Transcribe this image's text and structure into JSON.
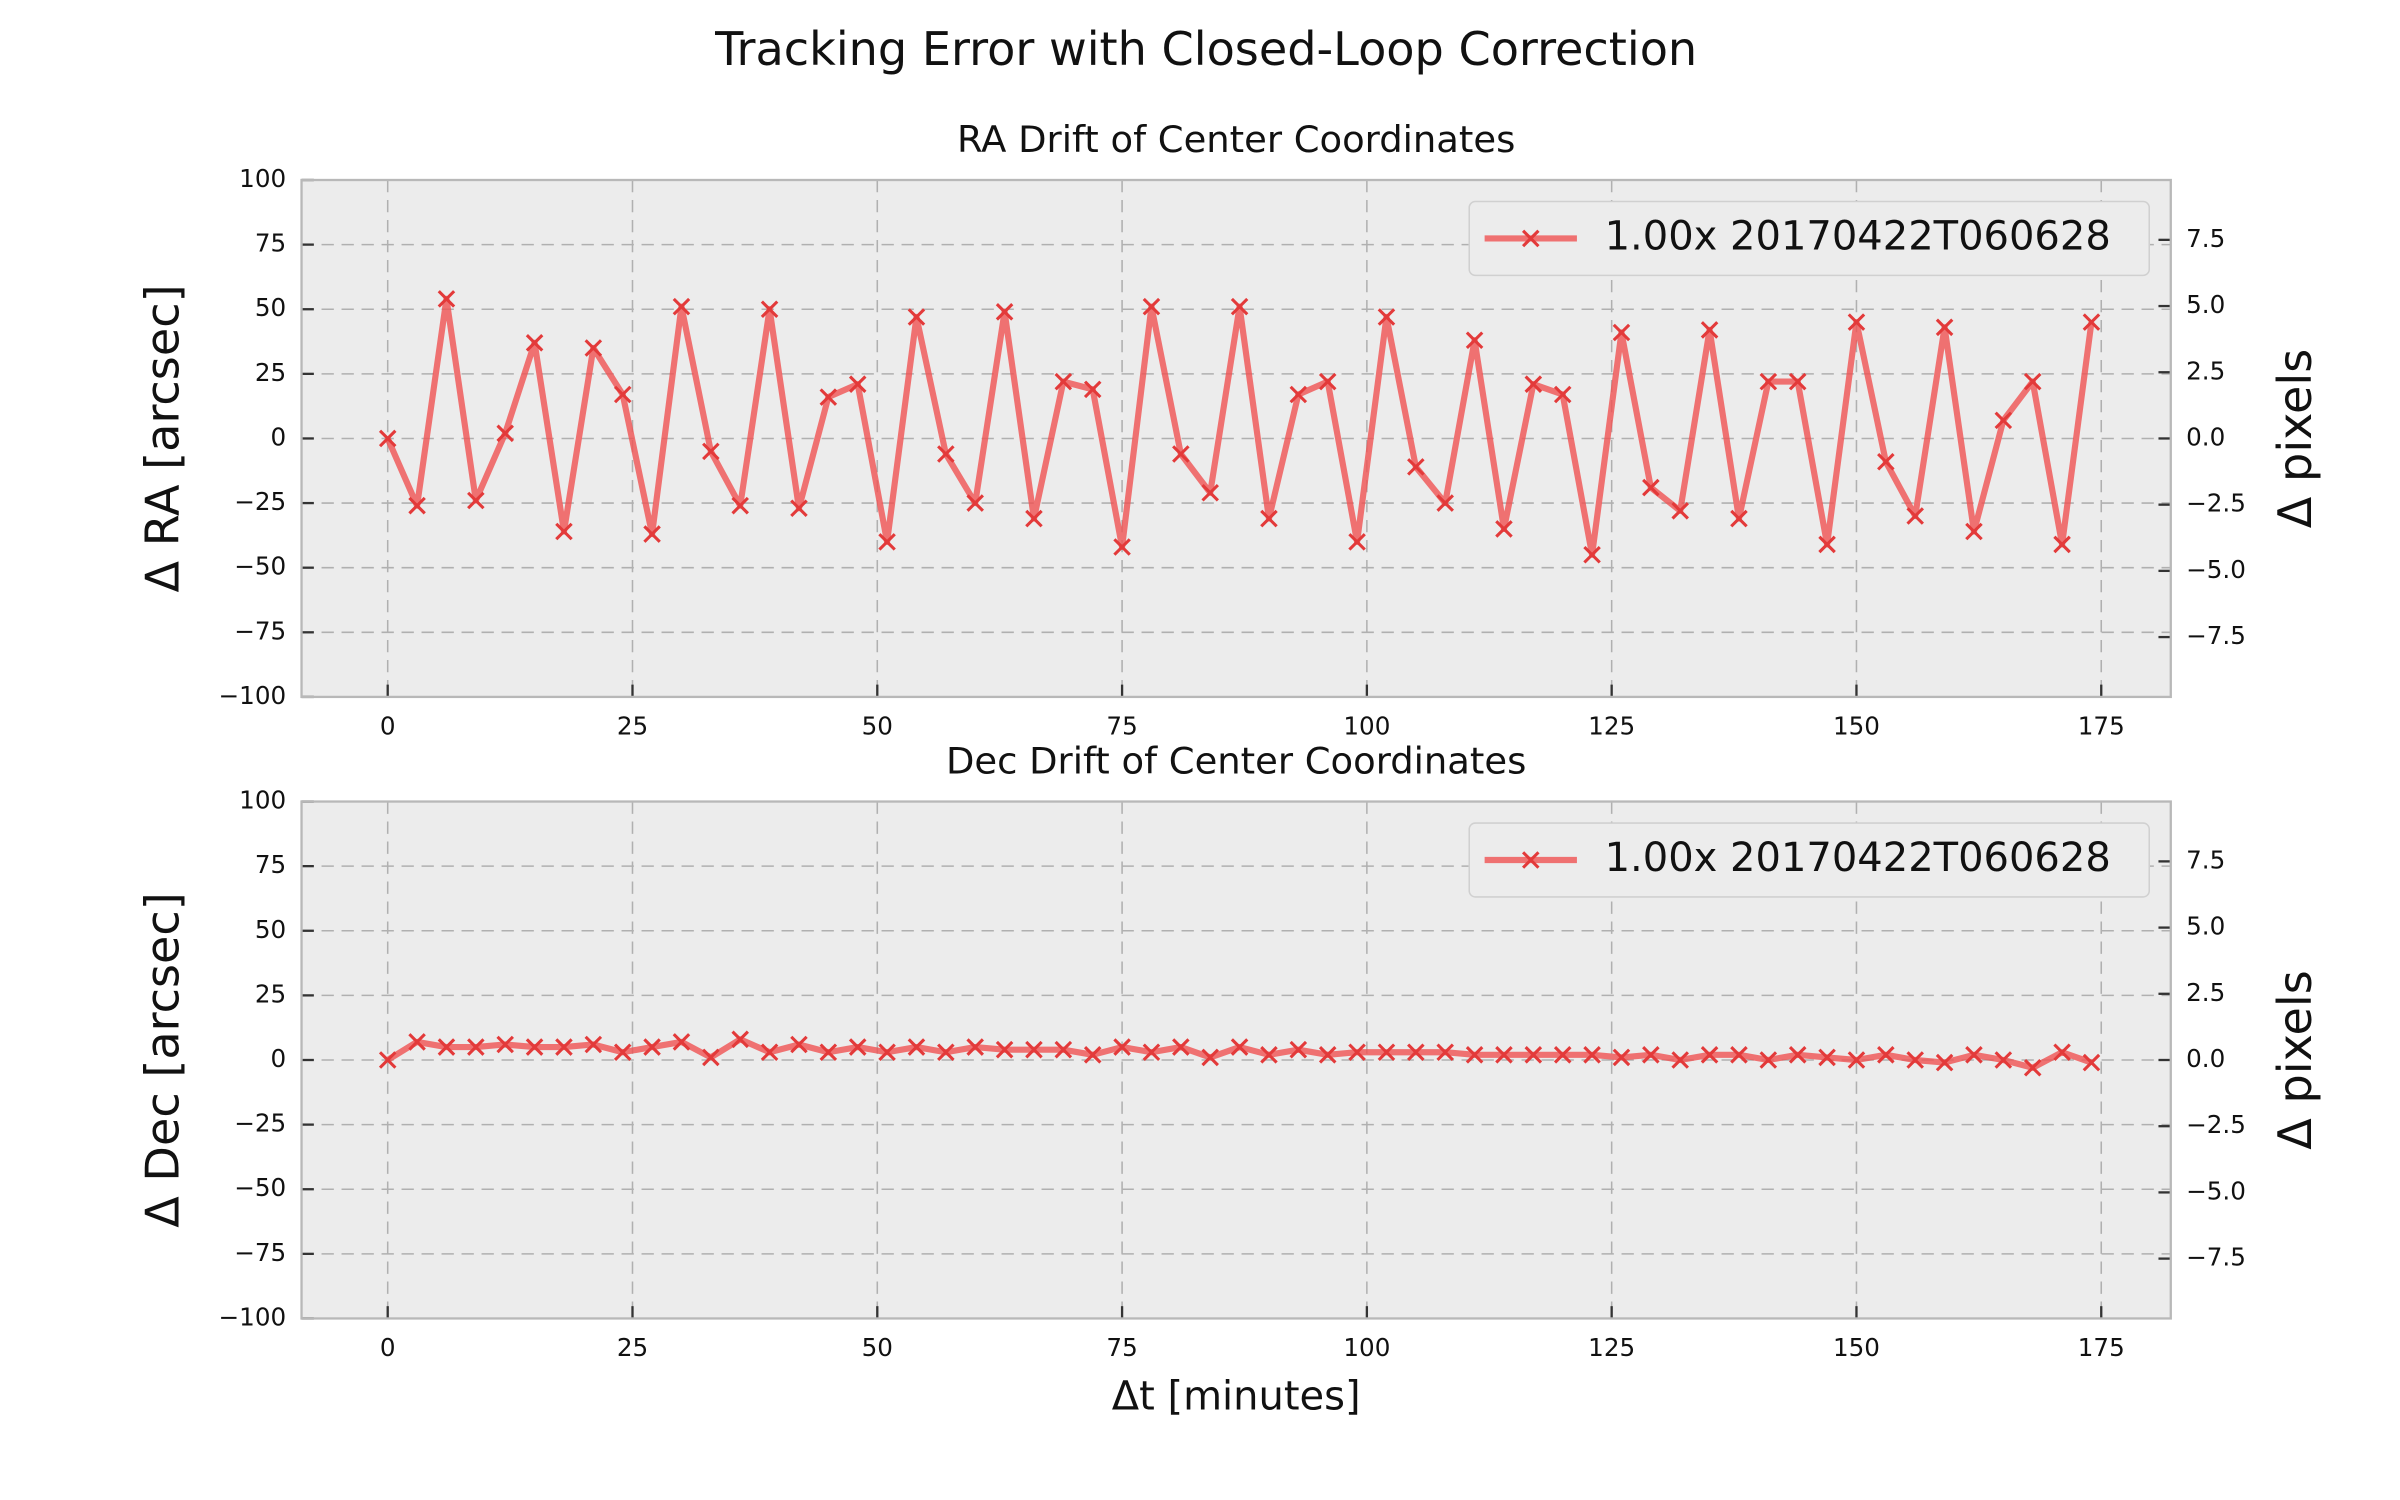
{
  "title": "Tracking Error with Closed-Loop Correction",
  "chart_data": [
    {
      "type": "line",
      "title": "RA Drift of Center Coordinates",
      "ylabel": "Δ RA [arcsec]",
      "y2label": "Δ pixels",
      "x": [
        0,
        3,
        6,
        9,
        12,
        15,
        18,
        21,
        24,
        27,
        30,
        33,
        36,
        39,
        42,
        45,
        48,
        51,
        54,
        57,
        60,
        63,
        66,
        69,
        72,
        75,
        78,
        81,
        84,
        87,
        90,
        93,
        96,
        99,
        102,
        105,
        108,
        111,
        114,
        117,
        120,
        123,
        126,
        129,
        132,
        135,
        138,
        141,
        144,
        147,
        150,
        153,
        156,
        159,
        162,
        165,
        168,
        171,
        174
      ],
      "series": [
        {
          "name": "1.00x 20170422T060628",
          "color": "#f05252",
          "values": [
            0,
            -26,
            54,
            -24,
            2,
            37,
            -36,
            35,
            17,
            -37,
            51,
            -5,
            -26,
            50,
            -27,
            16,
            21,
            -40,
            47,
            -6,
            -25,
            49,
            -31,
            22,
            19,
            -42,
            51,
            -6,
            -21,
            51,
            -31,
            17,
            22,
            -40,
            47,
            -11,
            -25,
            38,
            -35,
            21,
            17,
            -45,
            41,
            -19,
            -28,
            42,
            -31,
            22,
            22,
            -41,
            45,
            -9,
            -30,
            43,
            -36,
            7,
            22,
            -41,
            45
          ]
        }
      ],
      "xlim": [
        -8.8,
        182.1
      ],
      "xticks": [
        0,
        25,
        50,
        75,
        100,
        125,
        150,
        175
      ],
      "ylim": [
        -100,
        100
      ],
      "yticks": [
        {
          "value": -100,
          "label": "−100"
        },
        {
          "value": -75,
          "label": "−75"
        },
        {
          "value": -50,
          "label": "−50"
        },
        {
          "value": -25,
          "label": "−25"
        },
        0,
        25,
        50,
        75,
        100
      ],
      "y2lim": [
        -9.76,
        9.76
      ],
      "y2ticks": [
        {
          "value": -7.5,
          "label": "−7.5"
        },
        {
          "value": -5,
          "label": "−5.0"
        },
        {
          "value": -2.5,
          "label": "−2.5"
        },
        {
          "value": 0,
          "label": "0.0"
        },
        2.5,
        {
          "value": 5,
          "label": "5.0"
        },
        7.5
      ],
      "grid": true,
      "legend": "upper right"
    },
    {
      "type": "line",
      "title": "Dec Drift of Center Coordinates",
      "ylabel": "Δ Dec [arcsec]",
      "y2label": "Δ pixels",
      "xlabel": "Δt [minutes]",
      "x": [
        0,
        3,
        6,
        9,
        12,
        15,
        18,
        21,
        24,
        27,
        30,
        33,
        36,
        39,
        42,
        45,
        48,
        51,
        54,
        57,
        60,
        63,
        66,
        69,
        72,
        75,
        78,
        81,
        84,
        87,
        90,
        93,
        96,
        99,
        102,
        105,
        108,
        111,
        114,
        117,
        120,
        123,
        126,
        129,
        132,
        135,
        138,
        141,
        144,
        147,
        150,
        153,
        156,
        159,
        162,
        165,
        168,
        171,
        174
      ],
      "series": [
        {
          "name": "1.00x 20170422T060628",
          "color": "#f05252",
          "values": [
            0,
            7,
            5,
            5,
            6,
            5,
            5,
            6,
            3,
            5,
            7,
            1,
            8,
            3,
            6,
            3,
            5,
            3,
            5,
            3,
            5,
            4,
            4,
            4,
            2,
            5,
            3,
            5,
            1,
            5,
            2,
            4,
            2,
            3,
            3,
            3,
            3,
            2,
            2,
            2,
            2,
            2,
            1,
            2,
            0,
            2,
            2,
            0,
            2,
            1,
            0,
            2,
            0,
            -1,
            2,
            0,
            -3,
            3,
            -1
          ]
        }
      ],
      "xlim": [
        -8.8,
        182.1
      ],
      "xticks": [
        0,
        25,
        50,
        75,
        100,
        125,
        150,
        175
      ],
      "ylim": [
        -100,
        100
      ],
      "yticks": [
        {
          "value": -100,
          "label": "−100"
        },
        {
          "value": -75,
          "label": "−75"
        },
        {
          "value": -50,
          "label": "−50"
        },
        {
          "value": -25,
          "label": "−25"
        },
        0,
        25,
        50,
        75,
        100
      ],
      "y2lim": [
        -9.76,
        9.76
      ],
      "y2ticks": [
        {
          "value": -7.5,
          "label": "−7.5"
        },
        {
          "value": -5,
          "label": "−5.0"
        },
        {
          "value": -2.5,
          "label": "−2.5"
        },
        {
          "value": 0,
          "label": "0.0"
        },
        2.5,
        {
          "value": 5,
          "label": "5.0"
        },
        7.5
      ],
      "grid": true,
      "legend": "upper right"
    }
  ]
}
